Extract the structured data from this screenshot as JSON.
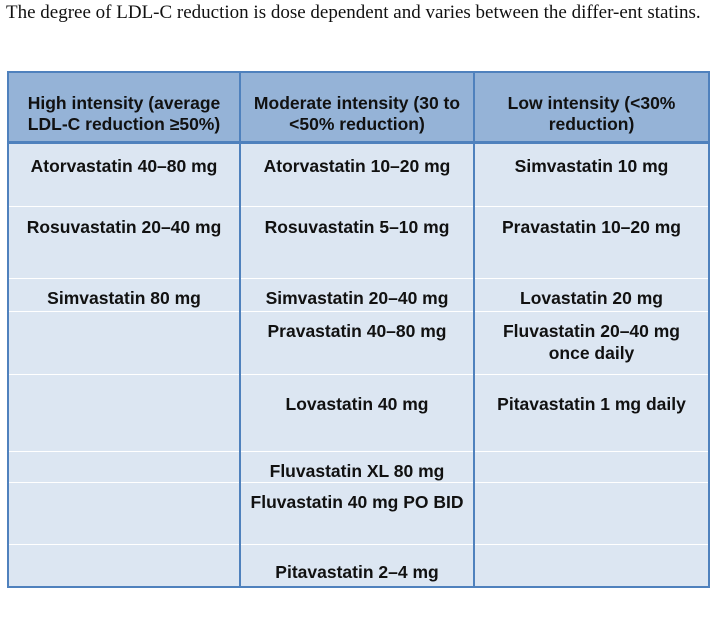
{
  "intro_text": "The degree of LDL-C reduction is dose dependent and varies between the differ-ent statins.",
  "table": {
    "headers": [
      "High intensity (average LDL-C reduction ≥50%)",
      "Moderate intensity (30 to <50% reduction)",
      "Low intensity (<30% reduction)"
    ],
    "rows": [
      [
        "Atorvastatin 40–80 mg",
        "Atorvastatin 10–20 mg",
        "Simvastatin 10 mg"
      ],
      [
        "Rosuvastatin 20–40 mg",
        "Rosuvastatin 5–10 mg",
        "Pravastatin 10–20 mg"
      ],
      [
        "Simvastatin 80 mg",
        "Simvastatin 20–40 mg",
        "Lovastatin 20 mg"
      ],
      [
        "",
        "Pravastatin 40–80 mg",
        "Fluvastatin 20–40 mg once daily"
      ],
      [
        "",
        "Lovastatin 40 mg",
        "Pitavastatin 1 mg daily"
      ],
      [
        "",
        "Fluvastatin XL 80 mg",
        ""
      ],
      [
        "",
        "Fluvastatin 40 mg PO BID",
        ""
      ],
      [
        "",
        "Pitavastatin 2–4 mg",
        ""
      ]
    ]
  },
  "colors": {
    "header_fill": "#95b3d7",
    "body_fill": "#dce6f2",
    "border": "#4f81bd"
  }
}
